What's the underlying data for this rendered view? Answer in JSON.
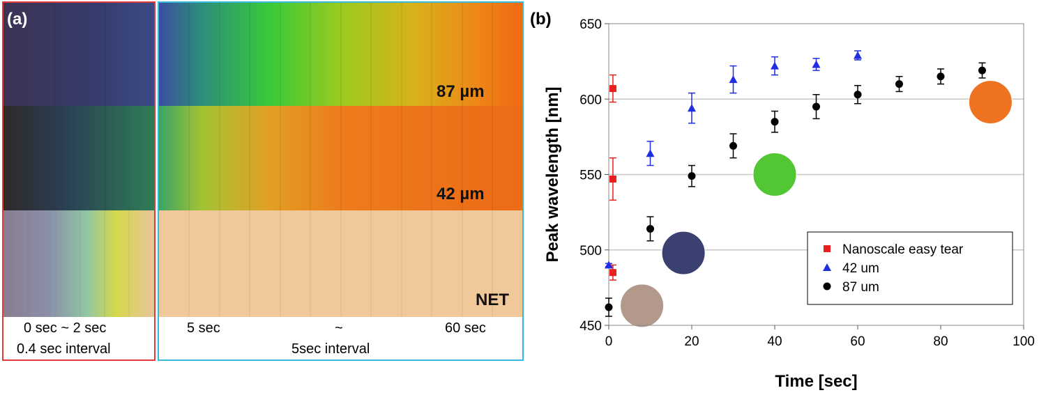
{
  "panel_a": {
    "label": "(a)",
    "row_labels": [
      "87 µm",
      "42 µm",
      "NET"
    ],
    "left_caption_line1": "0 sec ~ 2 sec",
    "left_caption_line2": "0.4 sec interval",
    "right_caption_start": "5 sec",
    "right_caption_mid": "~",
    "right_caption_end": "60 sec",
    "right_caption_line2": "5sec interval",
    "colors": {
      "left_border": "#e23a3a",
      "right_border": "#36b9da"
    }
  },
  "panel_b": {
    "label": "(b)"
  },
  "chart_data": {
    "type": "scatter",
    "title": "",
    "xlabel": "Time [sec]",
    "ylabel": "Peak wavelength [nm]",
    "xlim": [
      0,
      100
    ],
    "ylim": [
      450,
      650
    ],
    "xticks": [
      "0",
      "20",
      "40",
      "60",
      "80",
      "100"
    ],
    "yticks": [
      "450",
      "500",
      "550",
      "600",
      "650"
    ],
    "grid": "horizontal",
    "legend_position": "bottom-right",
    "series": [
      {
        "name": "Nanoscale easy tear",
        "marker": "square",
        "color": "#e8201e",
        "points": [
          {
            "x": 1,
            "y": 485,
            "err": 5
          },
          {
            "x": 1,
            "y": 547,
            "err": 14
          },
          {
            "x": 1,
            "y": 607,
            "err": 9
          }
        ]
      },
      {
        "name": "42 um",
        "marker": "triangle",
        "color": "#1f2ee0",
        "points": [
          {
            "x": 0,
            "y": 490,
            "err": 1
          },
          {
            "x": 10,
            "y": 564,
            "err": 8
          },
          {
            "x": 20,
            "y": 594,
            "err": 10
          },
          {
            "x": 30,
            "y": 613,
            "err": 9
          },
          {
            "x": 40,
            "y": 622,
            "err": 6
          },
          {
            "x": 50,
            "y": 623,
            "err": 4
          },
          {
            "x": 60,
            "y": 629,
            "err": 3
          }
        ]
      },
      {
        "name": "87 um",
        "marker": "circle",
        "color": "#000000",
        "points": [
          {
            "x": 0,
            "y": 462,
            "err": 6
          },
          {
            "x": 10,
            "y": 514,
            "err": 8
          },
          {
            "x": 20,
            "y": 549,
            "err": 7
          },
          {
            "x": 30,
            "y": 569,
            "err": 8
          },
          {
            "x": 40,
            "y": 585,
            "err": 7
          },
          {
            "x": 50,
            "y": 595,
            "err": 8
          },
          {
            "x": 60,
            "y": 603,
            "err": 6
          },
          {
            "x": 70,
            "y": 610,
            "err": 5
          },
          {
            "x": 80,
            "y": 615,
            "err": 5
          },
          {
            "x": 90,
            "y": 619,
            "err": 5
          }
        ]
      }
    ],
    "color_swatches": [
      {
        "x": 8,
        "y": 463,
        "color": "#b3988c"
      },
      {
        "x": 18,
        "y": 498,
        "color": "#3a4170"
      },
      {
        "x": 40,
        "y": 550,
        "color": "#52c633"
      },
      {
        "x": 92,
        "y": 598,
        "color": "#ee7320"
      }
    ]
  }
}
